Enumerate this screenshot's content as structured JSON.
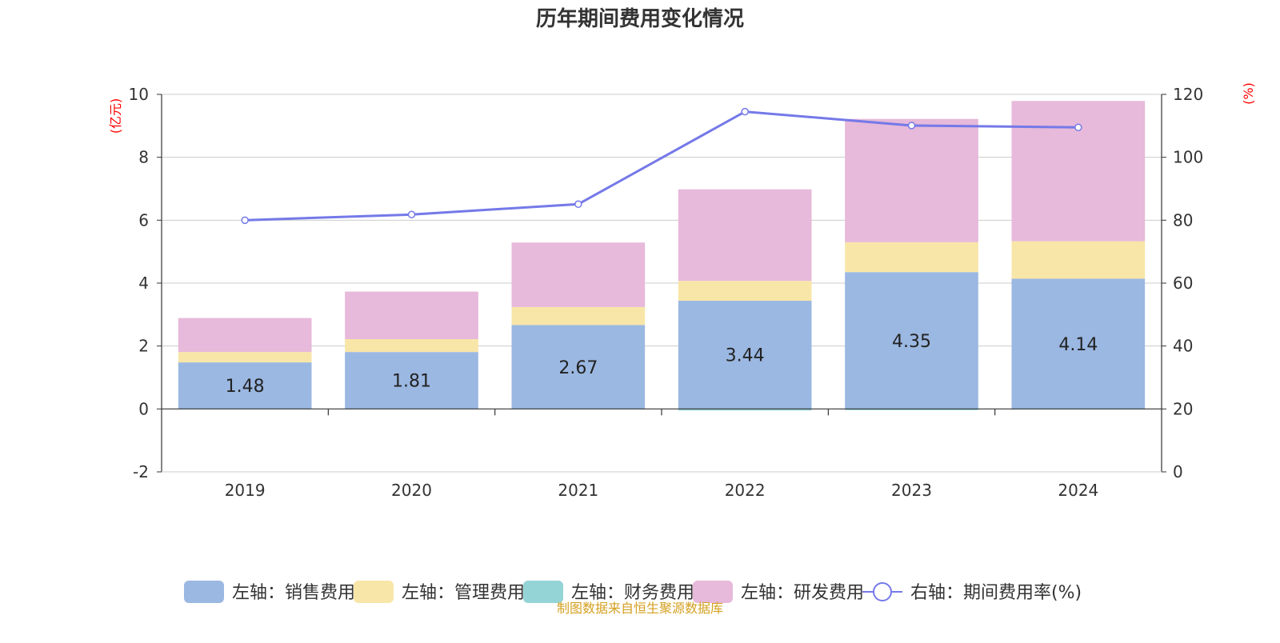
{
  "chart_data": {
    "type": "bar",
    "title": "历年期间费用变化情况",
    "left_axis_unit": "(亿元)",
    "right_axis_unit": "(%)",
    "categories": [
      "2019",
      "2020",
      "2021",
      "2022",
      "2023",
      "2024"
    ],
    "left_ylim": [
      -2,
      10
    ],
    "left_ticks": [
      -2,
      0,
      2,
      4,
      6,
      8,
      10
    ],
    "right_ylim": [
      0,
      120
    ],
    "right_ticks": [
      0,
      20,
      40,
      60,
      80,
      100,
      120
    ],
    "grid": true,
    "legend_position": "bottom",
    "series": [
      {
        "name": "左轴：销售费用",
        "type": "bar",
        "axis": "left",
        "color": "#9bb8e2",
        "values": [
          1.48,
          1.81,
          2.67,
          3.44,
          4.35,
          4.14
        ],
        "labels": [
          "1.48",
          "1.81",
          "2.67",
          "3.44",
          "4.35",
          "4.14"
        ]
      },
      {
        "name": "左轴：管理费用",
        "type": "bar",
        "axis": "left",
        "color": "#f8e6a8",
        "values": [
          0.33,
          0.41,
          0.57,
          0.63,
          0.95,
          1.19
        ]
      },
      {
        "name": "左轴：财务费用",
        "type": "bar",
        "axis": "left",
        "color": "#95d4d6",
        "values": [
          -0.01,
          -0.01,
          -0.01,
          -0.05,
          -0.04,
          -0.02
        ]
      },
      {
        "name": "左轴：研发费用",
        "type": "bar",
        "axis": "left",
        "color": "#e7b9da",
        "values": [
          1.08,
          1.51,
          2.05,
          2.91,
          3.92,
          4.46
        ]
      },
      {
        "name": "右轴：期间费用率(%)",
        "type": "line",
        "axis": "right",
        "color": "#7479e8",
        "values": [
          80.0,
          81.8,
          85.1,
          114.5,
          110.1,
          109.5
        ]
      }
    ],
    "source_note": "制图数据来自恒生聚源数据库"
  }
}
